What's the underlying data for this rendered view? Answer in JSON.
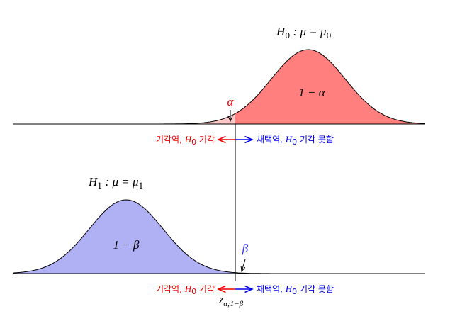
{
  "top_panel": {
    "hypothesis": {
      "symbol": "H",
      "subscript": "0",
      "relation": " : μ = μ",
      "relation_subscript": "0"
    },
    "area_label": "1 − α",
    "tail_label": "α",
    "reject_label": {
      "text": "기각역, ",
      "symbol": "H",
      "subscript": "0",
      "after": " 기각"
    },
    "accept_label": {
      "text": "채택역, ",
      "symbol": "H",
      "subscript": "0",
      "after": " 기각 못함"
    }
  },
  "bottom_panel": {
    "hypothesis": {
      "symbol": "H",
      "subscript": "1",
      "relation": " : μ = μ",
      "relation_subscript": "1"
    },
    "area_label": "1 − β",
    "tail_label": "β",
    "reject_label": {
      "text": "기각역, ",
      "symbol": "H",
      "subscript": "0",
      "after": " 기각"
    },
    "accept_label": {
      "text": "채택역, ",
      "symbol": "H",
      "subscript": "0",
      "after": " 기각 못함"
    },
    "critical_value": {
      "symbol": "z",
      "subscript": "α;1−β"
    }
  }
}
